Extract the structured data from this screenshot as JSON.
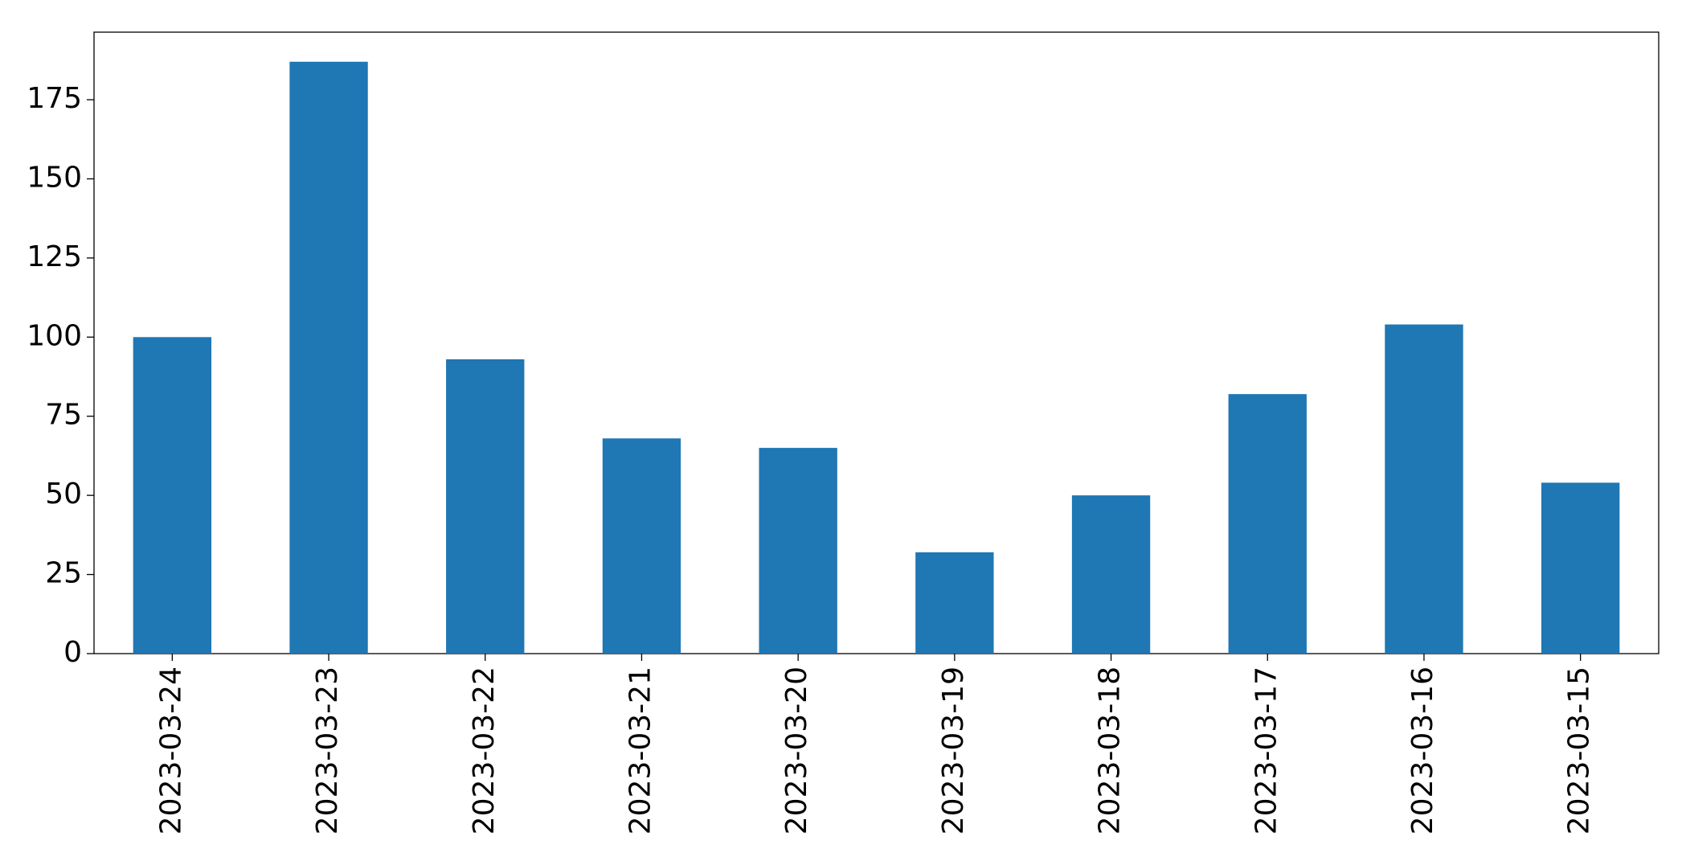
{
  "chart_data": {
    "type": "bar",
    "categories": [
      "2023-03-24",
      "2023-03-23",
      "2023-03-22",
      "2023-03-21",
      "2023-03-20",
      "2023-03-19",
      "2023-03-18",
      "2023-03-17",
      "2023-03-16",
      "2023-03-15"
    ],
    "values": [
      100,
      187,
      93,
      68,
      65,
      32,
      50,
      82,
      104,
      54
    ],
    "color": "#1f77b4",
    "ylim": [
      0,
      196.35
    ],
    "yticks": [
      0,
      25,
      50,
      75,
      100,
      125,
      150,
      175
    ],
    "grid": false
  }
}
